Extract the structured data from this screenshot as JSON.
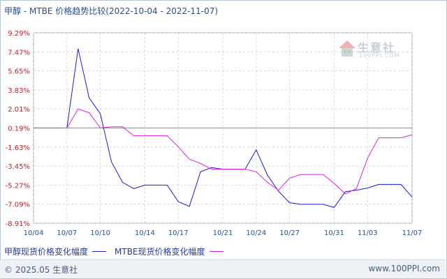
{
  "title": "甲醇 - MTBE 价格趋势比较(2022-10-04 - 2022-11-07)",
  "chart_data": {
    "type": "line",
    "x": [
      "10/04",
      "10/05",
      "10/06",
      "10/07",
      "10/08",
      "10/09",
      "10/10",
      "10/11",
      "10/12",
      "10/13",
      "10/14",
      "10/15",
      "10/16",
      "10/17",
      "10/18",
      "10/19",
      "10/20",
      "10/21",
      "10/22",
      "10/23",
      "10/24",
      "10/25",
      "10/26",
      "10/27",
      "10/28",
      "10/29",
      "10/30",
      "10/31",
      "11/01",
      "11/02",
      "11/03",
      "11/04",
      "11/05",
      "11/06",
      "11/07"
    ],
    "x_ticks": [
      "10/04",
      "10/07",
      "10/10",
      "10/14",
      "10/17",
      "10/21",
      "10/24",
      "10/27",
      "10/31",
      "11/03",
      "11/07"
    ],
    "series": [
      {
        "name": "甲醇现货价格变化幅度",
        "color": "#1c1cc8",
        "values": [
          0.19,
          0.19,
          0.19,
          0.19,
          7.77,
          3.05,
          1.55,
          -3.05,
          -5.0,
          -5.6,
          -5.27,
          -5.27,
          -5.27,
          -6.85,
          -7.3,
          -4.0,
          -3.6,
          -3.75,
          -3.75,
          -3.75,
          -1.9,
          -4.3,
          -5.85,
          -6.95,
          -7.1,
          -7.1,
          -7.1,
          -7.4,
          -5.9,
          -5.75,
          -5.55,
          -5.2,
          -5.2,
          -5.2,
          -6.4
        ]
      },
      {
        "name": "MTBE现货价格变化幅度",
        "color": "#e020e0",
        "values": [
          0.19,
          0.19,
          0.19,
          0.19,
          2.0,
          1.65,
          0.19,
          0.3,
          0.3,
          -0.55,
          -0.55,
          -0.55,
          -0.55,
          -1.6,
          -2.8,
          -3.2,
          -3.75,
          -3.75,
          -3.75,
          -3.75,
          -4.0,
          -5.0,
          -5.75,
          -4.6,
          -4.25,
          -4.25,
          -4.25,
          -5.1,
          -6.1,
          -5.6,
          -2.7,
          -0.75,
          -0.75,
          -0.75,
          -0.45
        ]
      }
    ],
    "y_ticks": [
      "9.29%",
      "7.47%",
      "5.65%",
      "3.83%",
      "2.01%",
      "0.19%",
      "-1.63%",
      "-3.45%",
      "-5.27%",
      "-7.09%",
      "-8.91%"
    ],
    "ylim": [
      -8.91,
      9.29
    ],
    "grid": true,
    "legend_position": "bottom-left"
  },
  "watermark": {
    "cn": "生意社",
    "en": "100PPI.COM"
  },
  "footer": {
    "copyright": "© 2025.05 生意社",
    "site": "www.100PPI.com"
  }
}
